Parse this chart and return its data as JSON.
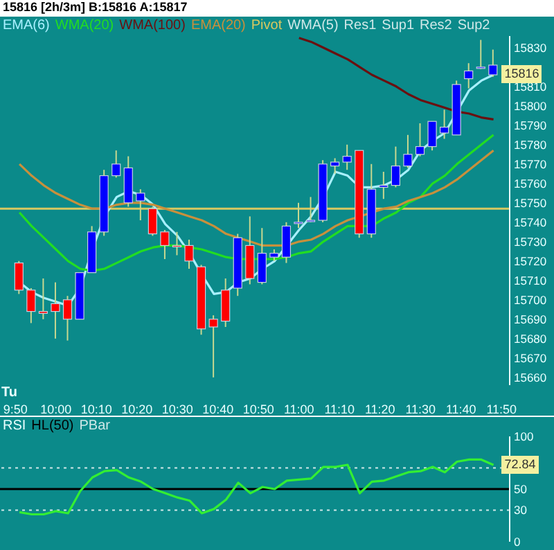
{
  "chart_data": [
    {
      "type": "candlestick",
      "title": "15816 [2h/3m] B:15816 A:15817",
      "xlabel": "Tu",
      "x": [
        9.85,
        9.9,
        9.95,
        10,
        10.05,
        10.1,
        10.15,
        10.2,
        10.25,
        10.3,
        10.35,
        10.4,
        10.45,
        10.5,
        10.55,
        10.6,
        10.65,
        10.7,
        10.75,
        10.8,
        10.85,
        10.9,
        10.95,
        11,
        11.05,
        11.1,
        11.15,
        11.2,
        11.25,
        11.3,
        11.35,
        11.4,
        11.45,
        11.5,
        11.55,
        11.6,
        11.65,
        11.7,
        11.75,
        11.8
      ],
      "ohlc": [
        [
          15719,
          15720,
          15703,
          15705
        ],
        [
          15705,
          15706,
          15688,
          15694
        ],
        [
          15693,
          15711,
          15690,
          15694
        ],
        [
          15698,
          15709,
          15680,
          15694
        ],
        [
          15700,
          15702,
          15679,
          15690
        ],
        [
          15690,
          15714,
          15690,
          15714
        ],
        [
          15714,
          15738,
          15714,
          15735
        ],
        [
          15735,
          15767,
          15733,
          15764
        ],
        [
          15764,
          15777,
          15763,
          15770
        ],
        [
          15750,
          15774,
          15748,
          15768
        ],
        [
          15751,
          15757,
          15741,
          15755
        ],
        [
          15747,
          15748,
          15733,
          15734
        ],
        [
          15735,
          15736,
          15721,
          15728
        ],
        [
          15728,
          15735,
          15723,
          15728
        ],
        [
          15728,
          15731,
          15716,
          15720
        ],
        [
          15717,
          15718,
          15682,
          15685
        ],
        [
          15690,
          15692,
          15660,
          15686
        ],
        [
          15705,
          15711,
          15686,
          15689
        ],
        [
          15706,
          15734,
          15702,
          15732
        ],
        [
          15728,
          15743,
          15708,
          15711
        ],
        [
          15709,
          15737,
          15708,
          15724
        ],
        [
          15722,
          15726,
          15720,
          15724
        ],
        [
          15722,
          15740,
          15719,
          15738
        ],
        [
          15740,
          15750,
          15737,
          15740
        ],
        [
          15741,
          15753,
          15740,
          15741
        ],
        [
          15741,
          15772,
          15740,
          15770
        ],
        [
          15769,
          15773,
          15765,
          15771
        ],
        [
          15771,
          15780,
          15767,
          15774
        ],
        [
          15777,
          15777,
          15732,
          15734
        ],
        [
          15734,
          15770,
          15732,
          15757
        ],
        [
          15758,
          15766,
          15752,
          15759
        ],
        [
          15759,
          15779,
          15758,
          15769
        ],
        [
          15769,
          15785,
          15768,
          15775
        ],
        [
          15775,
          15791,
          15774,
          15779
        ],
        [
          15779,
          15792,
          15777,
          15792
        ],
        [
          15786,
          15798,
          15783,
          15789
        ],
        [
          15785,
          15813,
          15785,
          15811
        ],
        [
          15814,
          15822,
          15809,
          15818
        ],
        [
          15820,
          15834,
          15819,
          15820
        ],
        [
          15816,
          15829,
          15815,
          15821
        ]
      ],
      "colors": [
        "#ff0000",
        "#ff0000",
        "#ff0000",
        "#ff0000",
        "#ff0000",
        "#0000ff",
        "#0000ff",
        "#0000ff",
        "#0000ff",
        "#0000ff",
        "#0000ff",
        "#ff0000",
        "#ff0000",
        "#ff0000",
        "#ff0000",
        "#ff0000",
        "#ff0000",
        "#ff0000",
        "#0000ff",
        "#ff0000",
        "#0000ff",
        "#0000ff",
        "#0000ff",
        "#0000ff",
        "#0000ff",
        "#0000ff",
        "#0000ff",
        "#0000ff",
        "#ff0000",
        "#0000ff",
        "#0000ff",
        "#0000ff",
        "#0000ff",
        "#0000ff",
        "#0000ff",
        "#0000ff",
        "#0000ff",
        "#0000ff",
        "#0000ff",
        "#0000ff"
      ],
      "series": [
        {
          "type": "line",
          "name": "EMA(6)",
          "color": "#a8f0ff",
          "values": [
            15709,
            15704,
            15701,
            15699,
            15697,
            15706,
            15726,
            15743,
            15753,
            15756,
            15754,
            15749,
            15739,
            15733,
            15724,
            15713,
            15703,
            15704,
            15709,
            15711,
            15716,
            15720,
            15728,
            15736,
            15743,
            15753,
            15766,
            15764,
            15758,
            15758,
            15759,
            15762,
            15767,
            15777,
            15782,
            15786,
            15797,
            15808,
            15813,
            15816
          ]
        },
        {
          "type": "line",
          "name": "WMA(20)",
          "color": "#22dd22",
          "values": [
            15745,
            15738,
            15732,
            15726,
            15720,
            15716,
            15715,
            15716,
            15719,
            15722,
            15725,
            15727,
            15728,
            15728,
            15727,
            15726,
            15724,
            15722,
            15721,
            15721,
            15721,
            15721,
            15722,
            15724,
            15725,
            15730,
            15734,
            15738,
            15738,
            15738,
            15742,
            15745,
            15750,
            15753,
            15760,
            15764,
            15770,
            15775,
            15780,
            15785
          ]
        },
        {
          "type": "line",
          "name": "WMA(100)",
          "color": "#6a1010",
          "values": [
            null,
            null,
            null,
            null,
            null,
            null,
            null,
            null,
            null,
            null,
            null,
            null,
            null,
            null,
            null,
            null,
            null,
            null,
            null,
            null,
            null,
            null,
            null,
            15835,
            15833,
            15830,
            15827,
            15824,
            15820,
            15816,
            15813,
            15810,
            15806,
            15803,
            15801,
            15799,
            15797,
            15796,
            15794,
            15793
          ]
        },
        {
          "type": "line",
          "name": "EMA(20)",
          "color": "#c8903c",
          "values": [
            15770,
            15764,
            15759,
            15755,
            15752,
            15749,
            15747,
            15747,
            15749,
            15750,
            15750,
            15749,
            15747,
            15745,
            15743,
            15741,
            15738,
            15734,
            15732,
            15730,
            15728,
            15728,
            15728,
            15730,
            15731,
            15734,
            15738,
            15741,
            15743,
            15745,
            15747,
            15748,
            15751,
            15753,
            15755,
            15758,
            15762,
            15767,
            15772,
            15777
          ]
        }
      ],
      "ref_lines": [
        {
          "axis": "y",
          "value": 15747,
          "label": "Pivot",
          "color": "#d8c860"
        }
      ],
      "annotations": [
        "WMA(5)",
        "Res1",
        "Sup1",
        "Res2",
        "Sup2",
        {
          "text": "15816",
          "x": 11.8,
          "y": 15816
        }
      ],
      "xlim": [
        9.77,
        11.8667
      ],
      "xticks": [
        {
          "value": 9.8333,
          "label": "9:50"
        },
        {
          "value": 10,
          "label": "10:00"
        },
        {
          "value": 10.1667,
          "label": "10:10"
        },
        {
          "value": 10.3333,
          "label": "10:20"
        },
        {
          "value": 10.5,
          "label": "10:30"
        },
        {
          "value": 10.6667,
          "label": "10:40"
        },
        {
          "value": 10.8333,
          "label": "10:50"
        },
        {
          "value": 11,
          "label": "11:00"
        },
        {
          "value": 11.1667,
          "label": "11:10"
        },
        {
          "value": 11.3333,
          "label": "11:20"
        },
        {
          "value": 11.5,
          "label": "11:30"
        },
        {
          "value": 11.6667,
          "label": "11:40"
        },
        {
          "value": 11.8333,
          "label": "11:50"
        }
      ],
      "ylim": [
        15656,
        15836
      ],
      "yticks": [
        15660,
        15670,
        15680,
        15690,
        15700,
        15710,
        15720,
        15730,
        15740,
        15750,
        15760,
        15770,
        15780,
        15790,
        15800,
        15810,
        15830
      ],
      "legend": "top left"
    },
    {
      "type": "line",
      "title": "RSI",
      "tick_labels": "y",
      "x": [
        9.85,
        9.9,
        9.95,
        10,
        10.05,
        10.1,
        10.15,
        10.2,
        10.25,
        10.3,
        10.35,
        10.4,
        10.45,
        10.5,
        10.55,
        10.6,
        10.65,
        10.7,
        10.75,
        10.8,
        10.85,
        10.9,
        10.95,
        11,
        11.05,
        11.1,
        11.15,
        11.2,
        11.25,
        11.3,
        11.35,
        11.4,
        11.45,
        11.5,
        11.55,
        11.6,
        11.65,
        11.7,
        11.75,
        11.8
      ],
      "series": [
        {
          "type": "line",
          "color": "#33ee33",
          "values": [
            28,
            26,
            26,
            29,
            27,
            48,
            61,
            67,
            68,
            61,
            57,
            50,
            46,
            42,
            39,
            27,
            31,
            40,
            56,
            46,
            52,
            50,
            58,
            59,
            60,
            71,
            71,
            73,
            46,
            57,
            58,
            62,
            66,
            67,
            71,
            66,
            76,
            78,
            78,
            72.84
          ]
        }
      ],
      "ref_lines": [
        {
          "axis": "y",
          "value": 50,
          "label": "HL(50)",
          "color": "#000000",
          "line_style": "solid"
        },
        {
          "axis": "y",
          "value": 30,
          "color": "#d0e8e8",
          "line_style": "dotted"
        },
        {
          "axis": "y",
          "value": 70,
          "color": "#d0e8e8",
          "line_style": "dotted"
        }
      ],
      "annotations": [
        "PBar",
        {
          "text": "72.84",
          "x": 11.8,
          "y": 72.84
        }
      ],
      "xlim": [
        9.77,
        11.8667
      ],
      "ylim": [
        0,
        100
      ],
      "yticks": [
        0,
        30,
        50,
        100
      ],
      "legend": "top left"
    }
  ]
}
